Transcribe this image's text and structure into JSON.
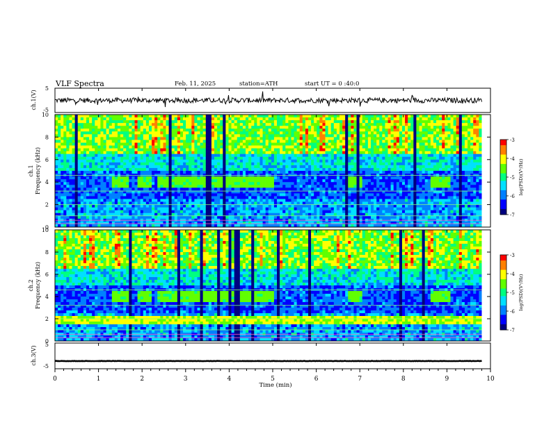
{
  "header": {
    "title": "VLF  Spectra",
    "date": "Feb. 11, 2025",
    "station": "station=ATH",
    "start": "start  UT  =   0 :40:0"
  },
  "colors": {
    "spectrum": [
      "#000080",
      "#0000ff",
      "#0080ff",
      "#00e0ff",
      "#00ff80",
      "#60ff00",
      "#ffff00",
      "#ff8000",
      "#ff0000",
      "#ffffff"
    ],
    "panel_border": "#000000",
    "background": "#ffffff"
  },
  "chart_data": [
    {
      "type": "line",
      "name": "ch1-waveform",
      "ylabel": "ch.1(V)",
      "ylim": [
        -5,
        5
      ],
      "yticks": [
        "5",
        "-5"
      ],
      "typical_level": 0,
      "typical_amplitude": 1.5
    },
    {
      "type": "heatmap",
      "name": "ch1-spectrogram",
      "ylabel": "ch.1\nFrequency  (kHz)",
      "ylim": [
        0,
        10
      ],
      "yticks": [
        "0",
        "2",
        "4",
        "6",
        "8",
        "10"
      ],
      "xlim": [
        0,
        9.8
      ],
      "enhanced_intervals_min": [
        [
          1.3,
          1.7
        ],
        [
          1.9,
          2.2
        ],
        [
          2.35,
          5.0
        ],
        [
          6.7,
          7.05
        ],
        [
          8.65,
          9.05
        ]
      ],
      "enhanced_band_khz": [
        3.6,
        4.4
      ],
      "colorbar": {
        "label": "log(PSD)(V²/Hz)",
        "ticks": [
          "-3",
          "-4",
          "-5",
          "-6",
          "-7"
        ],
        "range": [
          -7,
          -3
        ]
      }
    },
    {
      "type": "heatmap",
      "name": "ch2-spectrogram",
      "ylabel": "ch.2\nFrequency  (kHz)",
      "ylim": [
        0,
        10
      ],
      "yticks": [
        "0",
        "2",
        "4",
        "6",
        "8",
        "10"
      ],
      "xlim": [
        0,
        9.8
      ],
      "enhanced_intervals_min": [
        [
          1.3,
          1.7
        ],
        [
          1.9,
          2.2
        ],
        [
          2.35,
          5.0
        ],
        [
          6.7,
          7.05
        ],
        [
          8.65,
          9.05
        ]
      ],
      "enhanced_band_khz": [
        3.6,
        4.4
      ],
      "colorbar": {
        "label": "log(PSD)(V²/Hz)",
        "ticks": [
          "-3",
          "-4",
          "-5",
          "-6",
          "-7"
        ],
        "range": [
          -7,
          -3
        ]
      }
    },
    {
      "type": "line",
      "name": "ch3-waveform",
      "ylabel": "ch.3(V)",
      "ylim": [
        -5,
        5
      ],
      "yticks": [
        "5",
        "-5"
      ],
      "typical_level": -2,
      "typical_amplitude": 0.3
    }
  ],
  "xaxis": {
    "label": "Time  (min)",
    "ticks": [
      "0",
      "1",
      "2",
      "3",
      "4",
      "5",
      "6",
      "7",
      "8",
      "9",
      "10"
    ],
    "range": [
      0,
      10
    ]
  }
}
